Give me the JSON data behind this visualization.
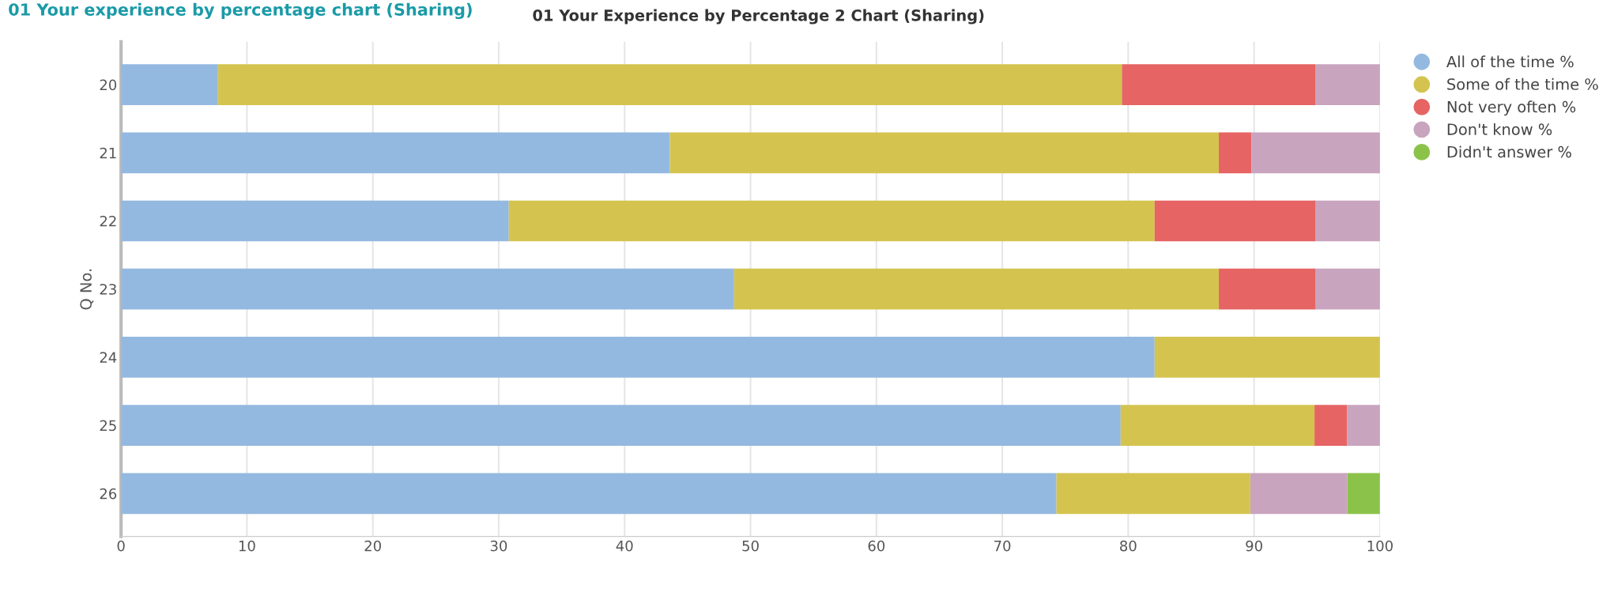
{
  "chart_data": {
    "type": "bar",
    "orientation": "horizontal",
    "stacked": true,
    "title": "01 Your Experience by Percentage 2 Chart (Sharing)",
    "annotations": [
      "01 Your experience by percentage chart (Sharing)"
    ],
    "ylabel": "Q No.",
    "categories": [
      "20",
      "21",
      "22",
      "23",
      "24",
      "25",
      "26"
    ],
    "series": [
      {
        "name": "All of the time %",
        "color": "#94b9e0",
        "values": [
          7.7,
          43.6,
          30.8,
          48.7,
          82.1,
          79.4,
          74.3
        ]
      },
      {
        "name": "Some of the time %",
        "color": "#d4c44f",
        "values": [
          71.8,
          43.6,
          51.3,
          38.5,
          17.9,
          15.4,
          15.4
        ]
      },
      {
        "name": "Not very often %",
        "color": "#e66464",
        "values": [
          15.4,
          2.6,
          12.8,
          7.7,
          0,
          2.6,
          0
        ]
      },
      {
        "name": "Don't know %",
        "color": "#c9a4be",
        "values": [
          5.1,
          10.2,
          5.1,
          5.1,
          0,
          2.6,
          7.7
        ]
      },
      {
        "name": "Didn't answer %",
        "color": "#8bc34a",
        "values": [
          0,
          0,
          0,
          0,
          0,
          0,
          2.6
        ]
      }
    ],
    "xlim": [
      0,
      100
    ],
    "xticks": [
      0,
      10,
      20,
      30,
      40,
      50,
      60,
      70,
      80,
      90,
      100
    ],
    "grid": "x",
    "legend": "right"
  }
}
